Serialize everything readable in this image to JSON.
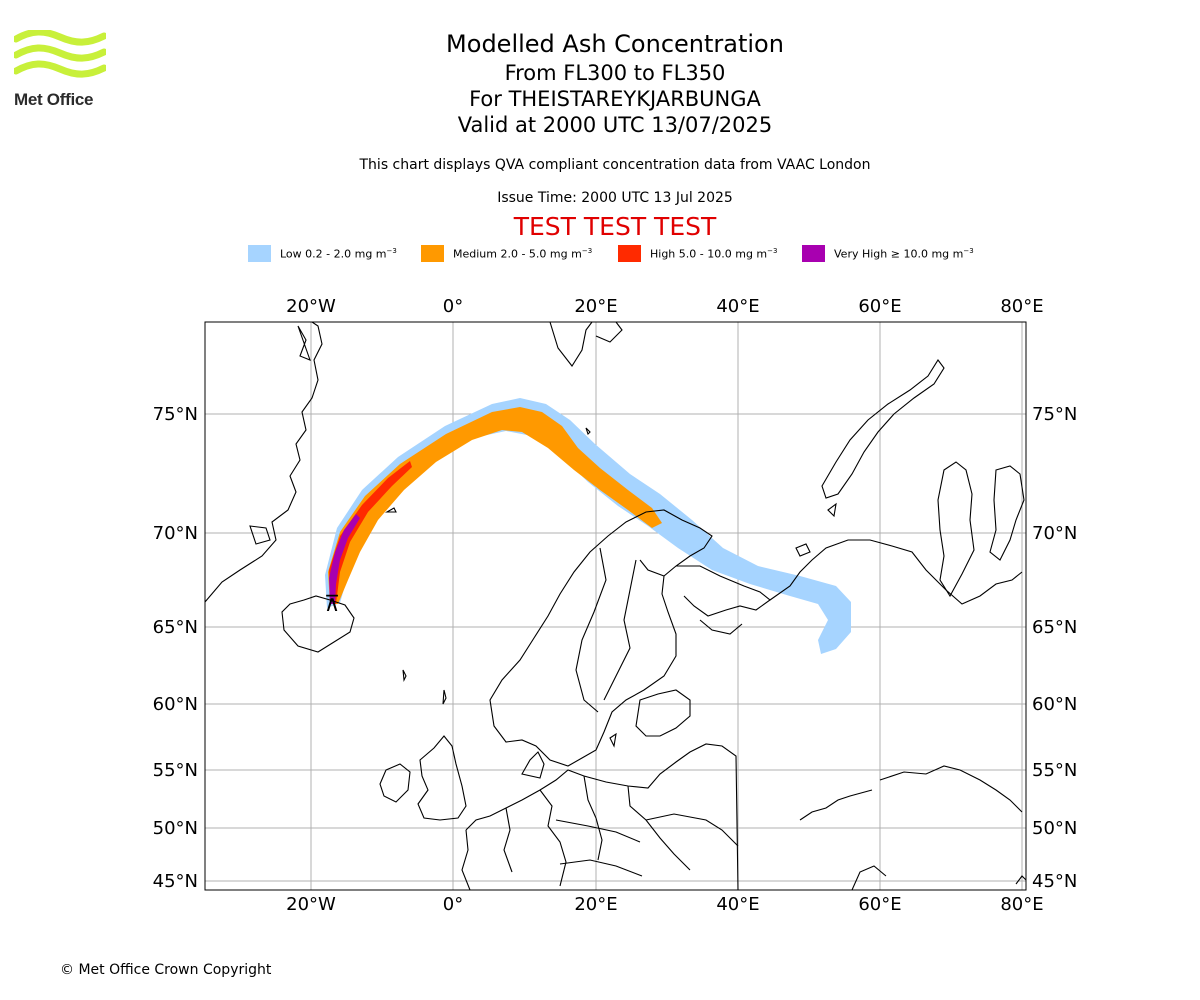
{
  "logo": {
    "text": "Met Office",
    "color": "#c8f03a"
  },
  "title": {
    "line1": "Modelled Ash Concentration",
    "line2": "From FL300 to FL350",
    "line3": "For THEISTAREYKJARBUNGA",
    "line4": "Valid at 2000 UTC 13/07/2025"
  },
  "note": "This chart displays QVA compliant concentration data from VAAC London",
  "issue_time": "Issue Time: 2000 UTC 13 Jul 2025",
  "test_banner": "TEST TEST TEST",
  "legend": [
    {
      "label": "Low 0.2 - 2.0 mg m",
      "unit_exp": "−3",
      "color": "#a6d4ff"
    },
    {
      "label": "Medium 2.0 - 5.0 mg m",
      "unit_exp": "−3",
      "color": "#ff9900"
    },
    {
      "label": "High 5.0 - 10.0 mg m",
      "unit_exp": "−3",
      "color": "#ff2a00"
    },
    {
      "label": "Very High ≥ 10.0 mg m",
      "unit_exp": "−3",
      "color": "#a800b0"
    }
  ],
  "map": {
    "lon_ticks": [
      "20°W",
      "0°",
      "20°E",
      "40°E",
      "60°E",
      "80°E"
    ],
    "lat_ticks": [
      "75°N",
      "70°N",
      "65°N",
      "60°N",
      "55°N",
      "50°N",
      "45°N"
    ],
    "volcano_marker": "⊼"
  },
  "footer": "© Met Office Crown Copyright"
}
